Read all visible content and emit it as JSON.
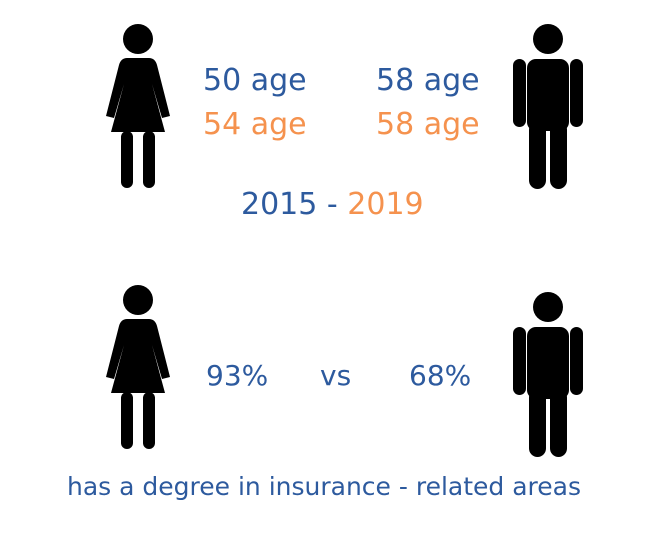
{
  "colors": {
    "blue": "#2d5a9e",
    "orange": "#f5924e",
    "figure": "#000000"
  },
  "icons": {
    "female": "female-person-icon",
    "male": "male-person-icon"
  },
  "age_comparison": {
    "female": {
      "year_2015": "50 age",
      "year_2019": "54 age"
    },
    "male": {
      "year_2015": "58 age",
      "year_2019": "58 age"
    }
  },
  "years": {
    "start": "2015",
    "separator": " - ",
    "end": "2019"
  },
  "degree_comparison": {
    "female_value": "93%",
    "vs_label": "vs",
    "male_value": "68%",
    "caption": "has a degree in insurance - related areas"
  }
}
